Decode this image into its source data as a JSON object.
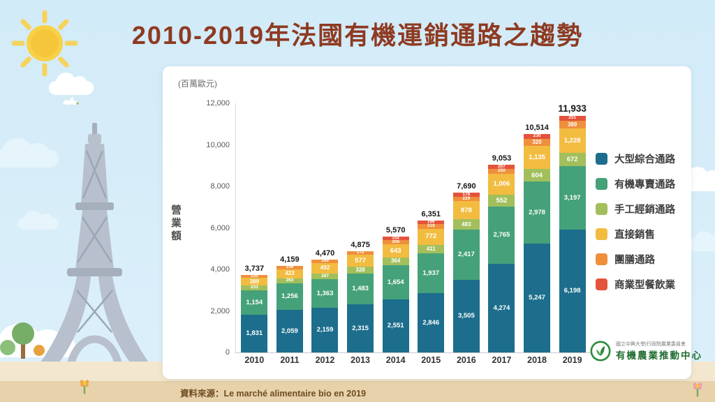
{
  "title": "2010-2019年法國有機運銷通路之趨勢",
  "source_text": "資料來源：Le marché alimentaire bio en 2019",
  "logo": {
    "line1": "國立中興大學|行政院農業委員會",
    "line2": "有機農業推動中心"
  },
  "chart_data": {
    "type": "bar",
    "stacked": true,
    "title": "2010-2019年法國有機運銷通路之趨勢",
    "unit_label": "(百萬歐元)",
    "ylabel": "營業額",
    "ylim": [
      0,
      12000
    ],
    "yticks": [
      "0",
      "2,000",
      "4,000",
      "6,000",
      "8,000",
      "10,000",
      "12,000"
    ],
    "categories": [
      "2010",
      "2011",
      "2012",
      "2013",
      "2014",
      "2015",
      "2016",
      "2017",
      "2018",
      "2019"
    ],
    "totals": [
      3737,
      4159,
      4470,
      4875,
      5570,
      6351,
      7690,
      9053,
      10514,
      11933
    ],
    "series": [
      {
        "name": "大型綜合通路",
        "color": "#1c6e8c",
        "values": [
          1831,
          2059,
          2159,
          2315,
          2551,
          2846,
          3505,
          4274,
          5247,
          6198
        ]
      },
      {
        "name": "有機專賣通路",
        "color": "#45a179",
        "values": [
          1154,
          1256,
          1363,
          1483,
          1654,
          1937,
          2417,
          2765,
          2978,
          3197
        ]
      },
      {
        "name": "手工經銷通路",
        "color": "#a2bf5c",
        "values": [
          233,
          263,
          287,
          328,
          364,
          411,
          483,
          552,
          604,
          672
        ]
      },
      {
        "name": "直接銷售",
        "color": "#f2bc41",
        "values": [
          389,
          423,
          492,
          577,
          643,
          772,
          878,
          1006,
          1135,
          1228
        ]
      },
      {
        "name": "團膳通路",
        "color": "#ef8f3c",
        "values": [
          130,
          158,
          169,
          172,
          206,
          219,
          229,
          250,
          320,
          389
        ]
      },
      {
        "name": "商業型餐飲業",
        "color": "#e4533b",
        "values": [
          null,
          null,
          null,
          null,
          152,
          166,
          178,
          207,
          230,
          251
        ]
      }
    ],
    "legend_position": "right",
    "grid": false
  }
}
